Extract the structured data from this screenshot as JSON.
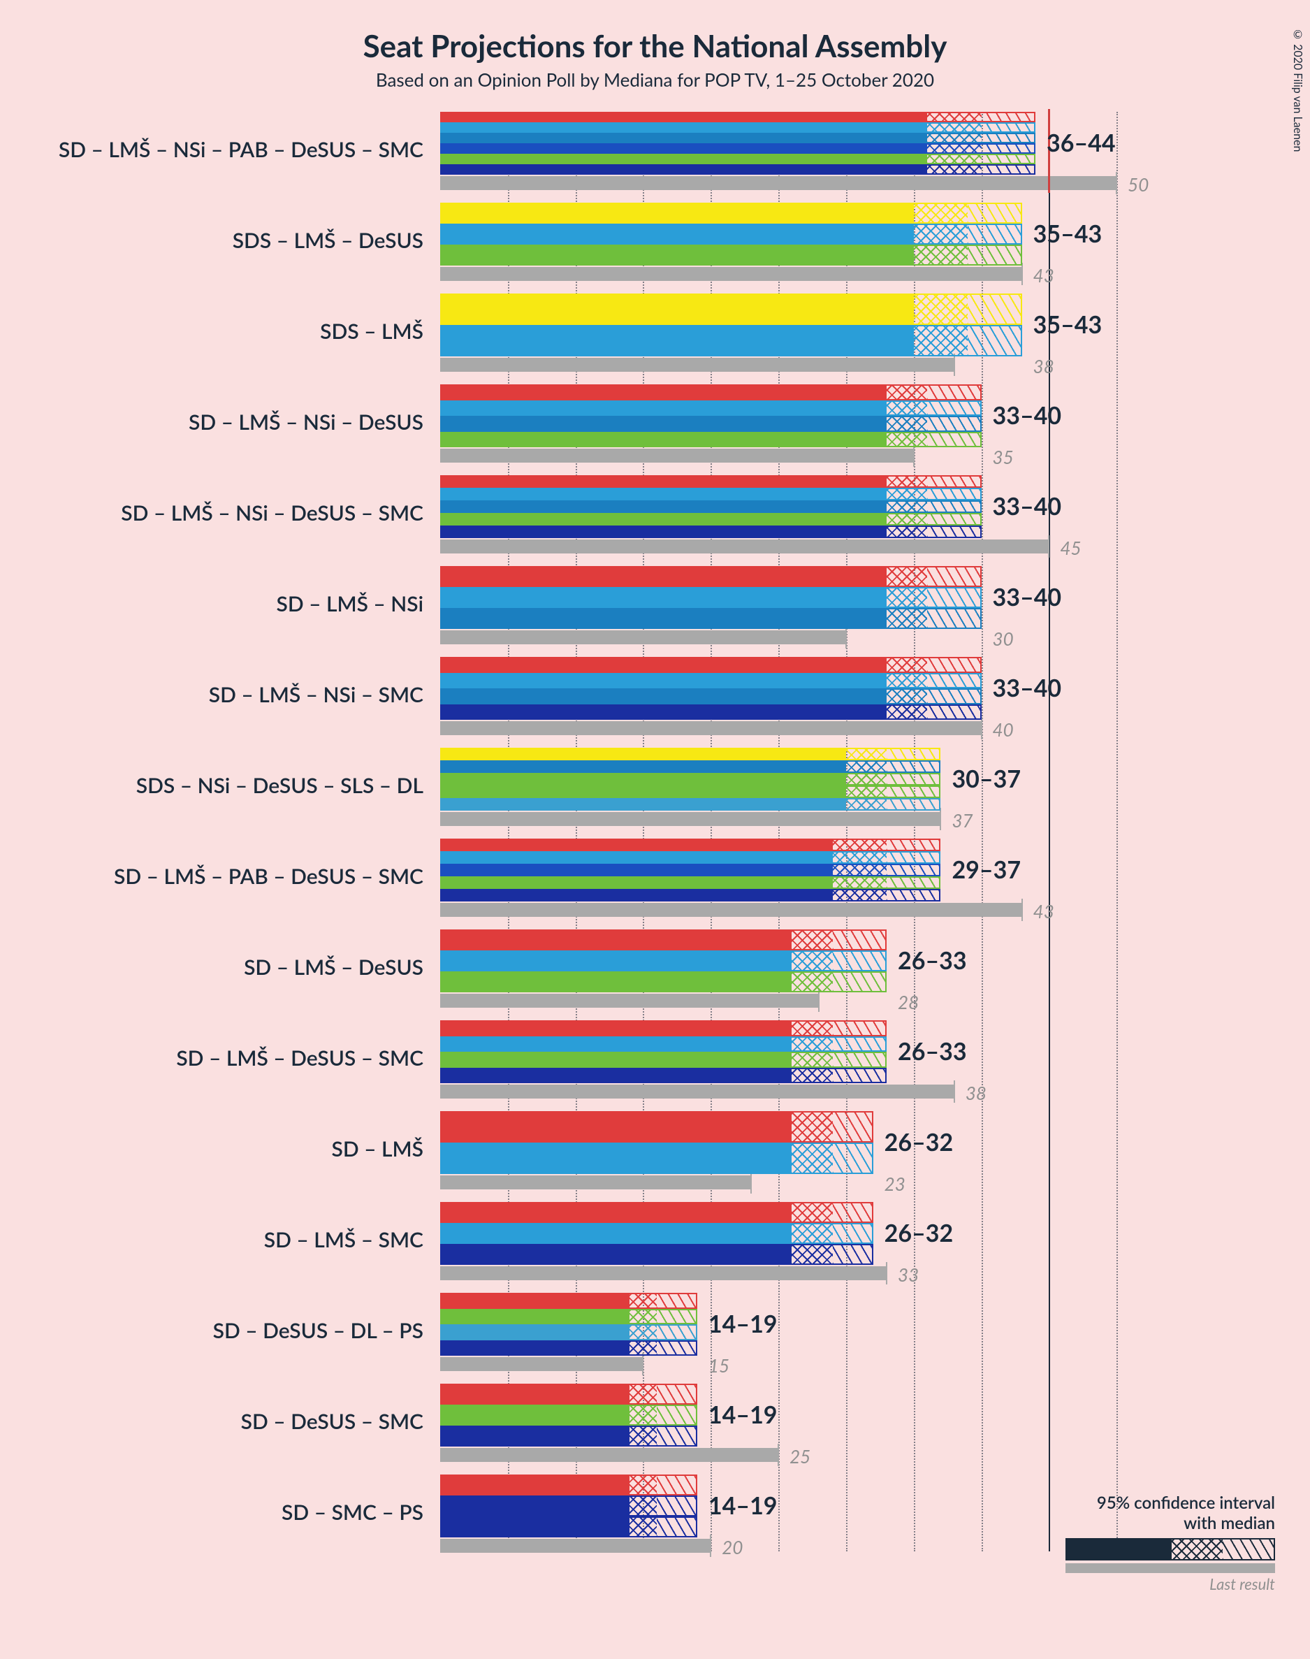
{
  "title": "Seat Projections for the National Assembly",
  "subtitle": "Based on an Opinion Poll by Mediana for POP TV, 1–25 October 2020",
  "copyright": "© 2020 Filip van Laenen",
  "legend": {
    "ci_label": "95% confidence interval\nwith median",
    "last_label": "Last result"
  },
  "chart": {
    "type": "bar",
    "background_color": "#fae0e0",
    "x_max": 55,
    "majority_line": 45,
    "grid_step": 5,
    "grid_color": "#1a2a3a",
    "last_result_color": "#a9a9a9",
    "title_fontsize": 44,
    "subtitle_fontsize": 26,
    "label_fontsize": 30,
    "value_fontsize": 34,
    "party_colors": {
      "SD": "#e03c3c",
      "LMS": "#2a9ed8",
      "NSi": "#1b7fc0",
      "PAB": "#1a4fc0",
      "DeSUS": "#6fbf3c",
      "SMC": "#1a2ea0",
      "SDS": "#f7e813",
      "SLS": "#6fbf3c",
      "DL": "#3aa0d0",
      "PS": "#1a2ea0"
    },
    "rows": [
      {
        "label": "SD – LMŠ – NSi – PAB – DeSUS – SMC",
        "parties": [
          "SD",
          "LMS",
          "NSi",
          "PAB",
          "DeSUS",
          "SMC"
        ],
        "low": 36,
        "median": 40,
        "high": 44,
        "last": 50,
        "show_majority_marker": true
      },
      {
        "label": "SDS – LMŠ – DeSUS",
        "parties": [
          "SDS",
          "LMS",
          "DeSUS"
        ],
        "low": 35,
        "median": 39,
        "high": 43,
        "last": 43
      },
      {
        "label": "SDS – LMŠ",
        "parties": [
          "SDS",
          "LMS"
        ],
        "low": 35,
        "median": 39,
        "high": 43,
        "last": 38
      },
      {
        "label": "SD – LMŠ – NSi – DeSUS",
        "parties": [
          "SD",
          "LMS",
          "NSi",
          "DeSUS"
        ],
        "low": 33,
        "median": 36,
        "high": 40,
        "last": 35
      },
      {
        "label": "SD – LMŠ – NSi – DeSUS – SMC",
        "parties": [
          "SD",
          "LMS",
          "NSi",
          "DeSUS",
          "SMC"
        ],
        "low": 33,
        "median": 36,
        "high": 40,
        "last": 45
      },
      {
        "label": "SD – LMŠ – NSi",
        "parties": [
          "SD",
          "LMS",
          "NSi"
        ],
        "low": 33,
        "median": 36,
        "high": 40,
        "last": 30
      },
      {
        "label": "SD – LMŠ – NSi – SMC",
        "parties": [
          "SD",
          "LMS",
          "NSi",
          "SMC"
        ],
        "low": 33,
        "median": 36,
        "high": 40,
        "last": 40
      },
      {
        "label": "SDS – NSi – DeSUS – SLS – DL",
        "parties": [
          "SDS",
          "NSi",
          "DeSUS",
          "SLS",
          "DL"
        ],
        "low": 30,
        "median": 33,
        "high": 37,
        "last": 37
      },
      {
        "label": "SD – LMŠ – PAB – DeSUS – SMC",
        "parties": [
          "SD",
          "LMS",
          "PAB",
          "DeSUS",
          "SMC"
        ],
        "low": 29,
        "median": 33,
        "high": 37,
        "last": 43
      },
      {
        "label": "SD – LMŠ – DeSUS",
        "parties": [
          "SD",
          "LMS",
          "DeSUS"
        ],
        "low": 26,
        "median": 29,
        "high": 33,
        "last": 28
      },
      {
        "label": "SD – LMŠ – DeSUS – SMC",
        "parties": [
          "SD",
          "LMS",
          "DeSUS",
          "SMC"
        ],
        "low": 26,
        "median": 29,
        "high": 33,
        "last": 38
      },
      {
        "label": "SD – LMŠ",
        "parties": [
          "SD",
          "LMS"
        ],
        "low": 26,
        "median": 29,
        "high": 32,
        "last": 23
      },
      {
        "label": "SD – LMŠ – SMC",
        "parties": [
          "SD",
          "LMS",
          "SMC"
        ],
        "low": 26,
        "median": 29,
        "high": 32,
        "last": 33
      },
      {
        "label": "SD – DeSUS – DL – PS",
        "parties": [
          "SD",
          "DeSUS",
          "DL",
          "PS"
        ],
        "low": 14,
        "median": 16,
        "high": 19,
        "last": 15
      },
      {
        "label": "SD – DeSUS – SMC",
        "parties": [
          "SD",
          "DeSUS",
          "SMC"
        ],
        "low": 14,
        "median": 16,
        "high": 19,
        "last": 25
      },
      {
        "label": "SD – SMC – PS",
        "parties": [
          "SD",
          "SMC",
          "PS"
        ],
        "low": 14,
        "median": 16,
        "high": 19,
        "last": 20
      }
    ]
  }
}
